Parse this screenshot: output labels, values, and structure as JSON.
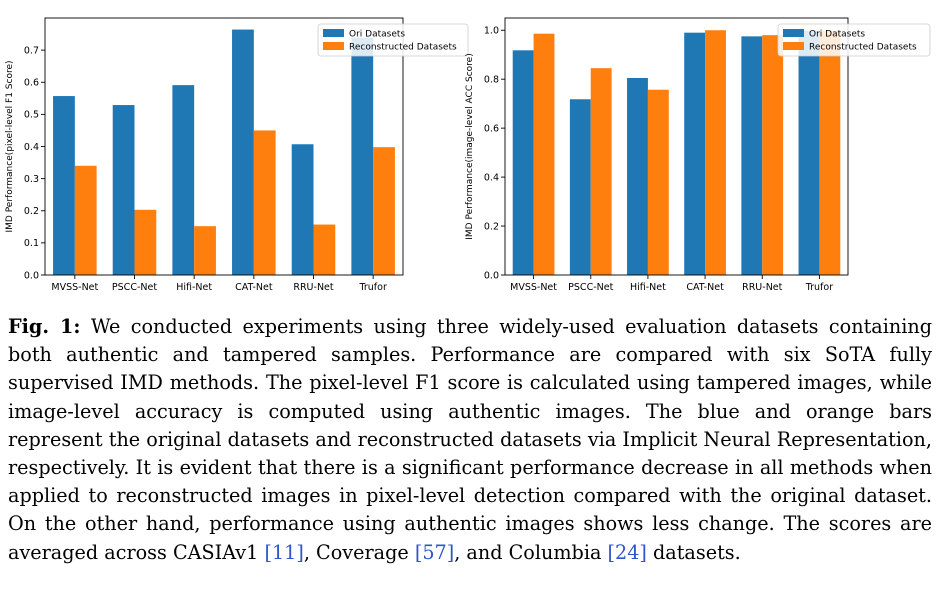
{
  "colors": {
    "ori": "#1f77b4",
    "rec": "#ff7f0e"
  },
  "chart_data": [
    {
      "type": "bar",
      "title": "",
      "xlabel": "",
      "ylabel": "IMD Performance(pixel-level F1 Score)",
      "categories": [
        "MVSS-Net",
        "PSCC-Net",
        "Hifi-Net",
        "CAT-Net",
        "RRU-Net",
        "Trufor"
      ],
      "series": [
        {
          "name": "Ori Datasets",
          "values": [
            0.557,
            0.529,
            0.591,
            0.764,
            0.407,
            0.739
          ]
        },
        {
          "name": "Reconstructed Datasets",
          "values": [
            0.34,
            0.203,
            0.152,
            0.45,
            0.157,
            0.398
          ]
        }
      ],
      "ylim": [
        0,
        0.8
      ],
      "yticks": [
        "0.0",
        "0.1",
        "0.2",
        "0.3",
        "0.4",
        "0.5",
        "0.6",
        "0.7"
      ],
      "grid": false,
      "legend": "top-right"
    },
    {
      "type": "bar",
      "title": "",
      "xlabel": "",
      "ylabel": "IMD Performance(image-level ACC Score)",
      "categories": [
        "MVSS-Net",
        "PSCC-Net",
        "Hifi-Net",
        "CAT-Net",
        "RRU-Net",
        "Trufor"
      ],
      "series": [
        {
          "name": "Ori Datasets",
          "values": [
            0.918,
            0.718,
            0.805,
            0.99,
            0.975,
            0.998
          ]
        },
        {
          "name": "Reconstructed Datasets",
          "values": [
            0.986,
            0.845,
            0.757,
            1.0,
            0.98,
            0.999
          ]
        }
      ],
      "ylim": [
        0,
        1.05
      ],
      "yticks": [
        "0.0",
        "0.2",
        "0.4",
        "0.6",
        "0.8",
        "1.0"
      ],
      "grid": false,
      "legend": "top-right"
    }
  ],
  "caption": {
    "label": "Fig. 1:",
    "text_before": " We conducted experiments using three widely-used evaluation datasets containing both authentic and tampered samples. Performance are compared with six SoTA fully supervised IMD methods. The pixel-level F1 score is calculated using tampered images, while image-level accuracy is computed using authentic images. The blue and orange bars represent the original datasets and reconstructed datasets via Implicit Neural Representation, respectively. It is evident that there is a significant performance decrease in all methods when applied to reconstructed images in pixel-level detection compared with the original dataset. On the other hand, performance using authentic images shows less change. The scores are averaged across CASIAv1 ",
    "ref1": "[11]",
    "text_mid1": ", Coverage ",
    "ref2": "[57]",
    "text_mid2": ", and Columbia ",
    "ref3": "[24]",
    "text_after": " datasets."
  }
}
